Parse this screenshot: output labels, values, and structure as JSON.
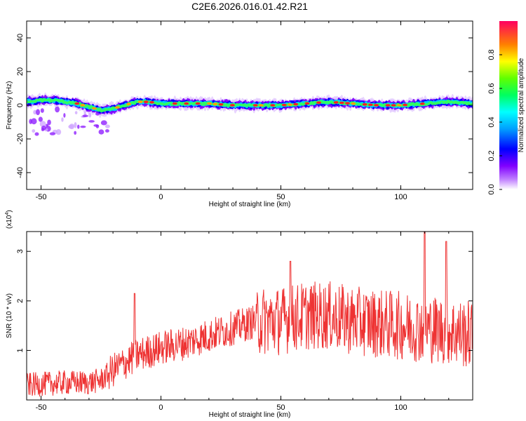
{
  "title": "C2E6.2026.016.01.42.R21",
  "chart_data": [
    {
      "type": "heatmap",
      "title": "C2E6.2026.016.01.42.R21",
      "xlabel": "Height of straight line (km)",
      "ylabel": "Frequency (Hz)",
      "xlim": [
        -56,
        130
      ],
      "ylim": [
        -50,
        50
      ],
      "xticks": [
        -50,
        0,
        50,
        100
      ],
      "yticks": [
        -40,
        -20,
        0,
        20,
        40
      ],
      "xtick_labels": [
        "-50",
        "0",
        "50",
        "100"
      ],
      "ytick_labels": [
        "-40",
        "-20",
        "0",
        "20",
        "40"
      ],
      "colorbar": {
        "label": "Normalized spectral amplitude",
        "range": [
          0,
          1
        ],
        "ticks": [
          0.0,
          0.2,
          0.4,
          0.6,
          0.8
        ],
        "tick_labels": [
          "0.0",
          "0.2",
          "0.4",
          "0.6",
          "0.8"
        ]
      },
      "ridge": {
        "x": [
          -56,
          -50,
          -45,
          -40,
          -35,
          -30,
          -25,
          -20,
          -15,
          -10,
          -5,
          0,
          10,
          20,
          30,
          40,
          50,
          60,
          70,
          80,
          90,
          100,
          110,
          120,
          130
        ],
        "freq": [
          2,
          3,
          3,
          2,
          1,
          -1,
          -3,
          -2,
          0,
          2,
          2,
          1,
          1,
          1,
          0,
          0,
          0,
          1,
          2,
          1,
          0,
          0,
          1,
          2,
          1
        ]
      }
    },
    {
      "type": "line",
      "xlabel": "Height of straight line (km)",
      "ylabel": "SNR (10 * v/v)",
      "y_scale_label": "(x10",
      "y_scale_exp": "4",
      "xlim": [
        -56,
        130
      ],
      "ylim": [
        0,
        3.4
      ],
      "xticks": [
        -50,
        0,
        50,
        100
      ],
      "yticks": [
        1,
        2,
        3
      ],
      "xtick_labels": [
        "-50",
        "0",
        "50",
        "100"
      ],
      "ytick_labels": [
        "1",
        "2",
        "3"
      ],
      "color": "#ee3333",
      "trend": {
        "x": [
          -56,
          -40,
          -30,
          -25,
          -20,
          -10,
          0,
          10,
          20,
          30,
          40,
          50,
          60,
          70,
          80,
          90,
          100,
          110,
          120,
          130
        ],
        "y": [
          0.3,
          0.35,
          0.35,
          0.4,
          0.6,
          0.9,
          1.05,
          1.15,
          1.3,
          1.45,
          1.6,
          1.6,
          1.7,
          1.7,
          1.6,
          1.55,
          1.5,
          1.45,
          1.4,
          1.3
        ]
      },
      "peaks": [
        {
          "x": -11,
          "y": 2.15
        },
        {
          "x": 54,
          "y": 2.8
        },
        {
          "x": 110,
          "y": 3.4
        },
        {
          "x": 119,
          "y": 3.2
        }
      ]
    }
  ]
}
